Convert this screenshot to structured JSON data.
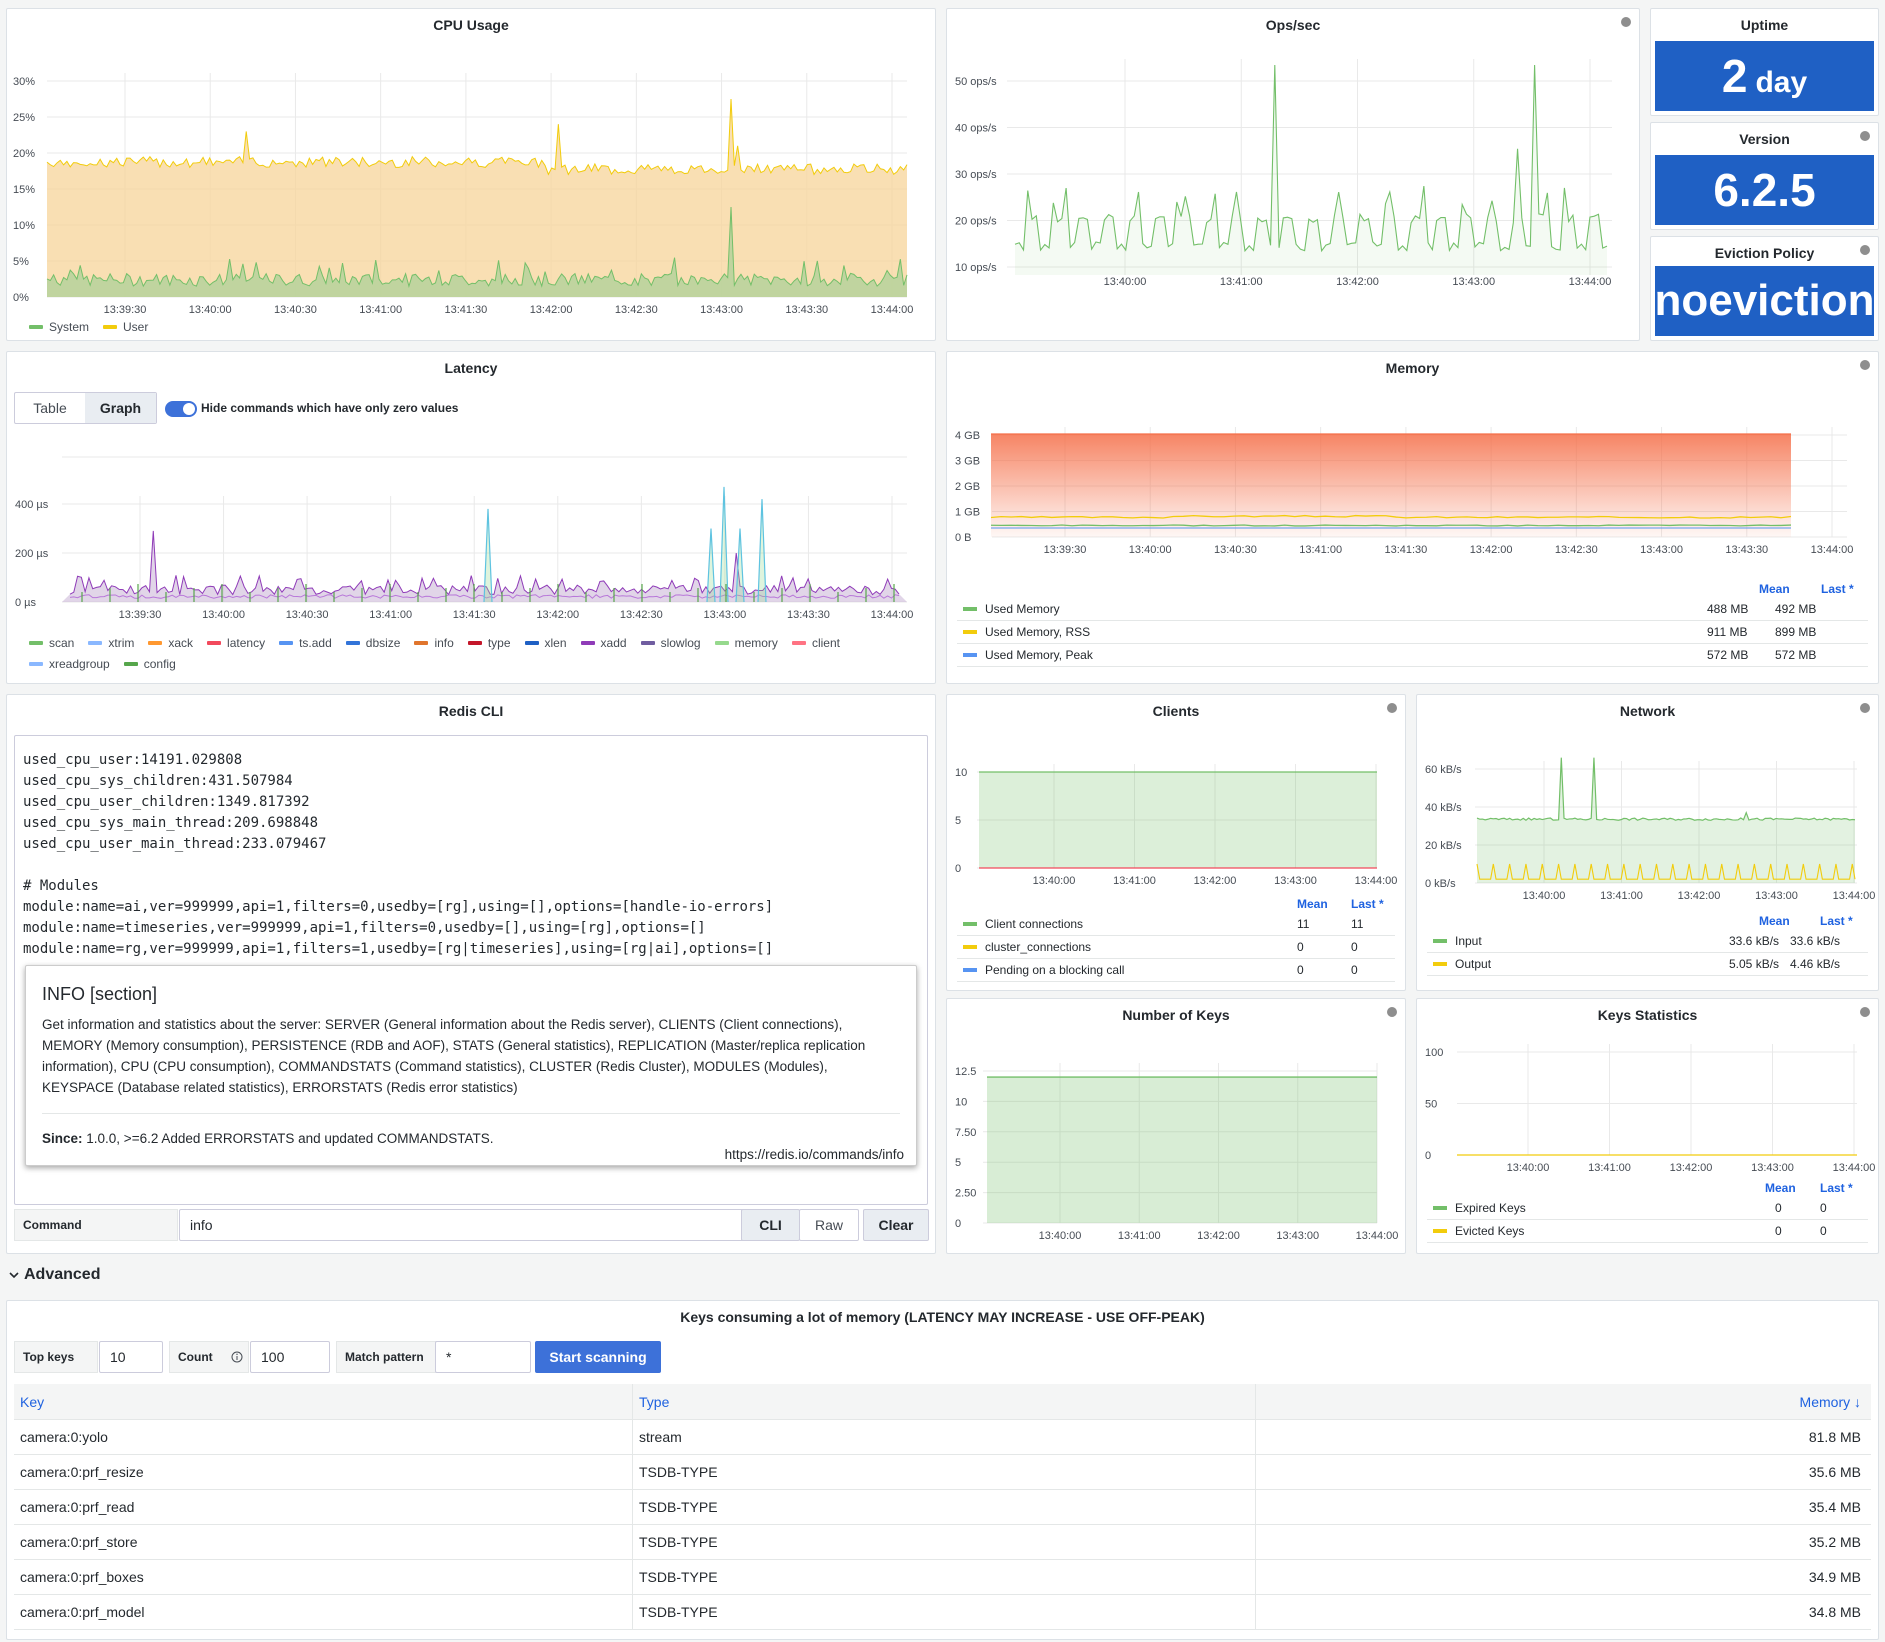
{
  "colors": {
    "system": "#73bf69",
    "user": "#f2cc0c",
    "ops": "#73bf69",
    "memory_fill": "#f56f49",
    "stat_bg": "#1f60c4",
    "link": "#1f62e0"
  },
  "cpu": {
    "title": "CPU Usage",
    "y_ticks": [
      "30%",
      "25%",
      "20%",
      "15%",
      "10%",
      "5%",
      "0%"
    ],
    "x_ticks": [
      "13:39:30",
      "13:40:00",
      "13:40:30",
      "13:41:00",
      "13:41:30",
      "13:42:00",
      "13:42:30",
      "13:43:00",
      "13:43:30",
      "13:44:00"
    ],
    "legend": [
      {
        "name": "System",
        "color": "#73bf69"
      },
      {
        "name": "User",
        "color": "#f2cc0c"
      }
    ]
  },
  "ops": {
    "title": "Ops/sec",
    "y_ticks": [
      "50 ops/s",
      "40 ops/s",
      "30 ops/s",
      "20 ops/s",
      "10 ops/s"
    ],
    "x_ticks": [
      "13:40:00",
      "13:41:00",
      "13:42:00",
      "13:43:00",
      "13:44:00"
    ]
  },
  "uptime": {
    "title": "Uptime",
    "value": "2",
    "unit": "day"
  },
  "version": {
    "title": "Version",
    "value": "6.2.5"
  },
  "eviction": {
    "title": "Eviction Policy",
    "value": "noeviction"
  },
  "latency": {
    "title": "Latency",
    "tabs": [
      "Table",
      "Graph"
    ],
    "toggle_label": "Hide commands which have only zero values",
    "y_ticks": [
      "400 µs",
      "200 µs",
      "0 µs"
    ],
    "x_ticks": [
      "13:39:30",
      "13:40:00",
      "13:40:30",
      "13:41:00",
      "13:41:30",
      "13:42:00",
      "13:42:30",
      "13:43:00",
      "13:43:30",
      "13:44:00"
    ],
    "legend": [
      {
        "name": "scan",
        "color": "#73bf69"
      },
      {
        "name": "xtrim",
        "color": "#8ab8ff"
      },
      {
        "name": "xack",
        "color": "#ff9830"
      },
      {
        "name": "latency",
        "color": "#f2495c"
      },
      {
        "name": "ts.add",
        "color": "#5794f2"
      },
      {
        "name": "dbsize",
        "color": "#3274d9"
      },
      {
        "name": "info",
        "color": "#e0752d"
      },
      {
        "name": "type",
        "color": "#c4162a"
      },
      {
        "name": "xlen",
        "color": "#1f60c4"
      },
      {
        "name": "xadd",
        "color": "#8f3bb8"
      },
      {
        "name": "slowlog",
        "color": "#705da0"
      },
      {
        "name": "memory",
        "color": "#96d98d"
      },
      {
        "name": "client",
        "color": "#ff7383"
      },
      {
        "name": "xreadgroup",
        "color": "#8ab8ff"
      },
      {
        "name": "config",
        "color": "#56a64b"
      }
    ]
  },
  "memory": {
    "title": "Memory",
    "y_ticks": [
      "4 GB",
      "3 GB",
      "2 GB",
      "1 GB",
      "0 B"
    ],
    "x_ticks": [
      "13:39:30",
      "13:40:00",
      "13:40:30",
      "13:41:00",
      "13:41:30",
      "13:42:00",
      "13:42:30",
      "13:43:00",
      "13:43:30",
      "13:44:00"
    ],
    "head_mean": "Mean",
    "head_last": "Last *",
    "rows": [
      {
        "name": "Used Memory",
        "color": "#73bf69",
        "mean": "488 MB",
        "last": "492 MB"
      },
      {
        "name": "Used Memory, RSS",
        "color": "#f2cc0c",
        "mean": "911 MB",
        "last": "899 MB"
      },
      {
        "name": "Used Memory, Peak",
        "color": "#5794f2",
        "mean": "572 MB",
        "last": "572 MB"
      }
    ]
  },
  "cli": {
    "title": "Redis CLI",
    "lines": [
      "used_cpu_user:14191.029808",
      "used_cpu_sys_children:431.507984",
      "used_cpu_user_children:1349.817392",
      "used_cpu_sys_main_thread:209.698848",
      "used_cpu_user_main_thread:233.079467",
      "",
      "# Modules",
      "module:name=ai,ver=999999,api=1,filters=0,usedby=[rg],using=[],options=[handle-io-errors]",
      "module:name=timeseries,ver=999999,api=1,filters=0,usedby=[],using=[rg],options=[]",
      "module:name=rg,ver=999999,api=1,filters=1,usedby=[rg|timeseries],using=[rg|ai],options=[]"
    ],
    "help_title": "INFO [section]",
    "help_body": "Get information and statistics about the server: SERVER (General information about the Redis server), CLIENTS (Client connections), MEMORY (Memory consumption), PERSISTENCE (RDB and AOF), STATS (General statistics), REPLICATION (Master/replica replication information), CPU (CPU consumption), COMMANDSTATS (Command statistics), CLUSTER (Redis Cluster), MODULES (Modules), KEYSPACE (Database related statistics), ERRORSTATS (Redis error statistics)",
    "since_label": "Since:",
    "since_text": "1.0.0, >=6.2 Added ERRORSTATS and updated COMMANDSTATS.",
    "help_link": "https://redis.io/commands/info",
    "command_label": "Command",
    "command_value": "info",
    "mode_cli": "CLI",
    "mode_raw": "Raw",
    "clear": "Clear"
  },
  "clients": {
    "title": "Clients",
    "y_ticks": [
      "10",
      "5",
      "0"
    ],
    "x_ticks": [
      "13:40:00",
      "13:41:00",
      "13:42:00",
      "13:43:00",
      "13:44:00"
    ],
    "head_mean": "Mean",
    "head_last": "Last *",
    "rows": [
      {
        "name": "Client connections",
        "color": "#73bf69",
        "mean": "11",
        "last": "11"
      },
      {
        "name": "cluster_connections",
        "color": "#f2cc0c",
        "mean": "0",
        "last": "0"
      },
      {
        "name": "Pending on a blocking call",
        "color": "#5794f2",
        "mean": "0",
        "last": "0"
      }
    ]
  },
  "network": {
    "title": "Network",
    "y_ticks": [
      "60 kB/s",
      "40 kB/s",
      "20 kB/s",
      "0 kB/s"
    ],
    "x_ticks": [
      "13:40:00",
      "13:41:00",
      "13:42:00",
      "13:43:00",
      "13:44:00"
    ],
    "head_mean": "Mean",
    "head_last": "Last *",
    "rows": [
      {
        "name": "Input",
        "color": "#73bf69",
        "mean": "33.6 kB/s",
        "last": "33.6 kB/s"
      },
      {
        "name": "Output",
        "color": "#f2cc0c",
        "mean": "5.05 kB/s",
        "last": "4.46 kB/s"
      }
    ]
  },
  "numkeys": {
    "title": "Number of Keys",
    "y_ticks": [
      "12.5",
      "10",
      "7.50",
      "5",
      "2.50",
      "0"
    ],
    "x_ticks": [
      "13:40:00",
      "13:41:00",
      "13:42:00",
      "13:43:00",
      "13:44:00"
    ]
  },
  "keystats": {
    "title": "Keys Statistics",
    "y_ticks": [
      "100",
      "50",
      "0"
    ],
    "x_ticks": [
      "13:40:00",
      "13:41:00",
      "13:42:00",
      "13:43:00",
      "13:44:00"
    ],
    "head_mean": "Mean",
    "head_last": "Last *",
    "rows": [
      {
        "name": "Expired Keys",
        "color": "#73bf69",
        "mean": "0",
        "last": "0"
      },
      {
        "name": "Evicted Keys",
        "color": "#f2cc0c",
        "mean": "0",
        "last": "0"
      }
    ]
  },
  "advanced": {
    "label": "Advanced"
  },
  "topkeys": {
    "title": "Keys consuming a lot of memory (LATENCY MAY INCREASE - USE OFF-PEAK)",
    "top_label": "Top keys",
    "top_value": "10",
    "count_label": "Count",
    "count_value": "100",
    "match_label": "Match pattern",
    "match_value": "*",
    "scan_button": "Start scanning",
    "col_key": "Key",
    "col_type": "Type",
    "col_memory": "Memory ↓",
    "rows": [
      {
        "key": "camera:0:yolo",
        "type": "stream",
        "memory": "81.8 MB"
      },
      {
        "key": "camera:0:prf_resize",
        "type": "TSDB-TYPE",
        "memory": "35.6 MB"
      },
      {
        "key": "camera:0:prf_read",
        "type": "TSDB-TYPE",
        "memory": "35.4 MB"
      },
      {
        "key": "camera:0:prf_store",
        "type": "TSDB-TYPE",
        "memory": "35.2 MB"
      },
      {
        "key": "camera:0:prf_boxes",
        "type": "TSDB-TYPE",
        "memory": "34.9 MB"
      },
      {
        "key": "camera:0:prf_model",
        "type": "TSDB-TYPE",
        "memory": "34.8 MB"
      }
    ]
  }
}
